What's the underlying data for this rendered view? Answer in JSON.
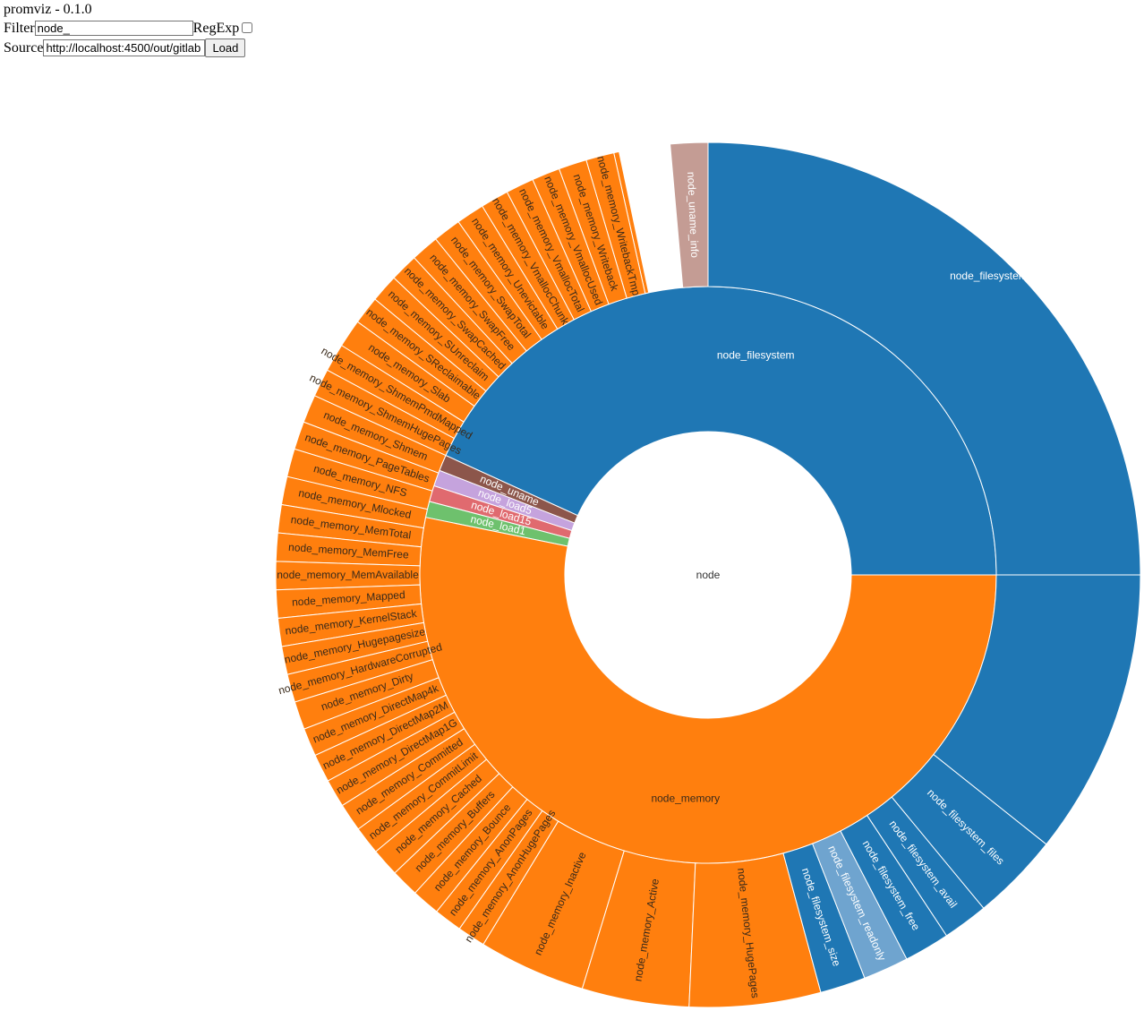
{
  "header": {
    "title": "promviz - 0.1.0"
  },
  "filter": {
    "label": "Filter",
    "value": "node_",
    "regexp_label": "RegExp",
    "regexp_checked": false
  },
  "source": {
    "label": "Source",
    "value": "http://localhost:4500/out/gitlab",
    "load_label": "Load"
  },
  "colors": {
    "filesystem": "#1f77b4",
    "filesystem_light": "#6fa4cf",
    "memory": "#ff7f0e",
    "uname": "#8c564b",
    "uname_light": "#c49c94",
    "load5": "#c5a3dd",
    "load15": "#e06a6f",
    "load1": "#6ec16d"
  },
  "sunburst": {
    "root": "node",
    "rings": [
      [
        {
          "label": "node_filesystem",
          "from": 0,
          "to": 43.2,
          "color": "filesystem"
        },
        {
          "label": "node_uname",
          "from": 43.2,
          "to": 44.1,
          "color": "uname"
        },
        {
          "label": "node_load5",
          "from": 44.1,
          "to": 45.0,
          "color": "load5"
        },
        {
          "label": "node_load15",
          "from": 45.0,
          "to": 45.9,
          "color": "load15"
        },
        {
          "label": "node_load1",
          "from": 45.9,
          "to": 46.8,
          "color": "load1"
        },
        {
          "label": "node_memory",
          "from": 46.8,
          "to": 100,
          "color": "memory"
        }
      ],
      [
        {
          "label": "node_filesystem_device",
          "from": 0,
          "to": 25.0,
          "color": "filesystem"
        },
        {
          "label": "node_uname_info",
          "from": 25.0,
          "to": 26.4,
          "color": "uname_light"
        },
        {
          "label": "",
          "from": 28.3,
          "to": 28.5,
          "color": "memory"
        },
        {
          "label": "node_memory_WritebackTmp",
          "from": 28.5,
          "to": 29.55,
          "color": "memory"
        },
        {
          "label": "node_memory_Writeback",
          "from": 29.55,
          "to": 30.6,
          "color": "memory"
        },
        {
          "label": "node_memory_VmallocUsed",
          "from": 30.6,
          "to": 31.65,
          "color": "memory"
        },
        {
          "label": "node_memory_VmallocTotal",
          "from": 31.65,
          "to": 32.7,
          "color": "memory"
        },
        {
          "label": "node_memory_VmallocChunk",
          "from": 32.7,
          "to": 33.75,
          "color": "memory"
        },
        {
          "label": "node_memory_Unevictable",
          "from": 33.75,
          "to": 34.8,
          "color": "memory"
        },
        {
          "label": "node_memory_SwapTotal",
          "from": 34.8,
          "to": 35.85,
          "color": "memory"
        },
        {
          "label": "node_memory_SwapFree",
          "from": 35.85,
          "to": 36.9,
          "color": "memory"
        },
        {
          "label": "node_memory_SwapCached",
          "from": 36.9,
          "to": 37.95,
          "color": "memory"
        },
        {
          "label": "node_memory_SUnreclaim",
          "from": 37.95,
          "to": 39.0,
          "color": "memory"
        },
        {
          "label": "node_memory_SReclaimable",
          "from": 39.0,
          "to": 40.05,
          "color": "memory"
        },
        {
          "label": "node_memory_Slab",
          "from": 40.05,
          "to": 41.1,
          "color": "memory"
        },
        {
          "label": "node_memory_ShmemPmdMapped",
          "from": 41.1,
          "to": 42.15,
          "color": "memory"
        },
        {
          "label": "node_memory_ShmemHugePages",
          "from": 42.15,
          "to": 43.2,
          "color": "memory"
        },
        {
          "label": "node_memory_Shmem",
          "from": 43.2,
          "to": 44.25,
          "color": "memory"
        },
        {
          "label": "node_memory_PageTables",
          "from": 44.25,
          "to": 45.3,
          "color": "memory"
        },
        {
          "label": "node_memory_NFS",
          "from": 45.3,
          "to": 46.35,
          "color": "memory"
        },
        {
          "label": "node_memory_Mlocked",
          "from": 46.35,
          "to": 47.4,
          "color": "memory"
        },
        {
          "label": "node_memory_MemTotal",
          "from": 47.4,
          "to": 48.45,
          "color": "memory"
        },
        {
          "label": "node_memory_MemFree",
          "from": 48.45,
          "to": 49.5,
          "color": "memory"
        },
        {
          "label": "node_memory_MemAvailable",
          "from": 49.5,
          "to": 50.55,
          "color": "memory"
        },
        {
          "label": "node_memory_Mapped",
          "from": 50.55,
          "to": 51.6,
          "color": "memory"
        },
        {
          "label": "node_memory_KernelStack",
          "from": 51.6,
          "to": 52.65,
          "color": "memory"
        },
        {
          "label": "node_memory_Hugepagesize",
          "from": 52.65,
          "to": 53.7,
          "color": "memory"
        },
        {
          "label": "node_memory_HardwareCorrupted",
          "from": 53.7,
          "to": 54.75,
          "color": "memory"
        },
        {
          "label": "node_memory_Dirty",
          "from": 54.75,
          "to": 55.8,
          "color": "memory"
        },
        {
          "label": "node_memory_DirectMap4k",
          "from": 55.8,
          "to": 56.85,
          "color": "memory"
        },
        {
          "label": "node_memory_DirectMap2M",
          "from": 56.85,
          "to": 57.9,
          "color": "memory"
        },
        {
          "label": "node_memory_DirectMap1G",
          "from": 57.9,
          "to": 58.95,
          "color": "memory"
        },
        {
          "label": "node_memory_Committed",
          "from": 58.95,
          "to": 60.0,
          "color": "memory"
        },
        {
          "label": "node_memory_CommitLimit",
          "from": 60.0,
          "to": 61.05,
          "color": "memory"
        },
        {
          "label": "node_memory_Cached",
          "from": 61.05,
          "to": 62.1,
          "color": "memory"
        },
        {
          "label": "node_memory_Buffers",
          "from": 62.1,
          "to": 63.15,
          "color": "memory"
        },
        {
          "label": "node_memory_Bounce",
          "from": 63.15,
          "to": 64.2,
          "color": "memory"
        },
        {
          "label": "node_memory_AnonPages",
          "from": 64.2,
          "to": 65.25,
          "color": "memory"
        },
        {
          "label": "node_memory_AnonHugePages",
          "from": 65.25,
          "to": 66.3,
          "color": "memory"
        },
        {
          "label": "node_memory_Inactive",
          "from": 66.3,
          "to": 70.3,
          "color": "memory"
        },
        {
          "label": "node_memory_Active",
          "from": 70.3,
          "to": 74.3,
          "color": "memory"
        },
        {
          "label": "node_memory_HugePages",
          "from": 74.3,
          "to": 79.2,
          "color": "memory"
        },
        {
          "label": "node_filesystem_size",
          "from": 79.2,
          "to": 80.9,
          "color": "filesystem"
        },
        {
          "label": "node_filesystem_readonly",
          "from": 80.9,
          "to": 82.6,
          "color": "filesystem_light"
        },
        {
          "label": "node_filesystem_free",
          "from": 82.6,
          "to": 84.3,
          "color": "filesystem"
        },
        {
          "label": "node_filesystem_avail",
          "from": 84.3,
          "to": 86.0,
          "color": "filesystem"
        },
        {
          "label": "node_filesystem_files",
          "from": 86.0,
          "to": 89.3,
          "color": "filesystem"
        },
        {
          "label": "node_filesystem_device",
          "from": 89.3,
          "to": 100,
          "color": "filesystem",
          "hide_label": true
        }
      ]
    ]
  }
}
